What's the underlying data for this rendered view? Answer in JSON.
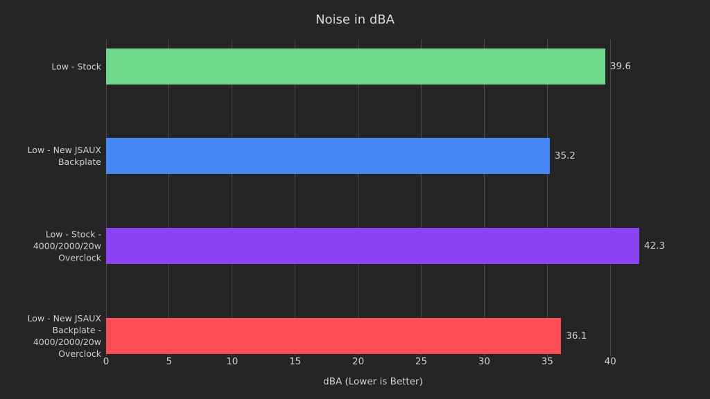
{
  "chart_data": {
    "type": "bar",
    "orientation": "horizontal",
    "title": "Noise in dBA",
    "xlabel": "dBA (Lower is Better)",
    "categories": [
      "Low - Stock",
      "Low - New JSAUX Backplate",
      "Low - Stock - 4000/2000/20w Overclock",
      "Low - New JSAUX Backplate - 4000/2000/20w Overclock"
    ],
    "values": [
      39.6,
      35.2,
      42.3,
      36.1
    ],
    "value_labels": [
      "39.6",
      "35.2",
      "42.3",
      "36.1"
    ],
    "bar_colors": [
      "#6ed98c",
      "#4689f5",
      "#8c42f5",
      "#fc4d57"
    ],
    "xticks": [
      0,
      5,
      10,
      15,
      20,
      25,
      30,
      35,
      40
    ],
    "xlim": [
      0,
      42.3
    ],
    "grid": "vertical",
    "legend": "none",
    "background_color": "#252525",
    "text_color": "#cfcfcf",
    "grid_color": "#4b4b4b"
  }
}
